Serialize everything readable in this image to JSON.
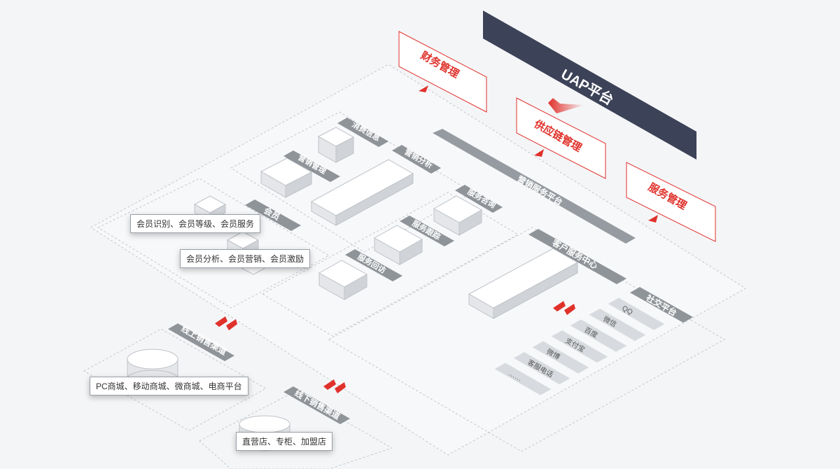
{
  "uap": {
    "label": "UAP平台"
  },
  "modules": {
    "finance": "财务管理",
    "supply_chain": "供应链管理",
    "service": "服务管理"
  },
  "platform": {
    "label": "营销服务平台"
  },
  "marketing": {
    "consume_info": "消费信息",
    "marketing_mgmt": "营销管理",
    "marketing_analysis": "营销分析"
  },
  "member": {
    "label": "会员",
    "callout_1": "会员识别、会员等级、会员服务",
    "callout_2": "会员分析、会员营销、会员激励"
  },
  "service": {
    "consult": "服务咨询",
    "tracking": "服务跟踪",
    "revisit": "服务回访"
  },
  "customer_center": {
    "label": "客户服务中心"
  },
  "social": {
    "label": "社交平台",
    "items": [
      "QQ",
      "微信",
      "百度",
      "支付宝",
      "微博",
      "客服电话",
      "……"
    ]
  },
  "online": {
    "label": "线上销售渠道",
    "callout": "PC商城、移动商城、微商城、电商平台"
  },
  "offline": {
    "label": "线下销售渠道",
    "callout": "直营店、专柜、加盟店"
  },
  "colors": {
    "navy": "#3c4257",
    "red": "#e0312b",
    "gray_tag": "#8f9499",
    "box_top": "#ffffff",
    "box_side": "#dcdfe3"
  }
}
